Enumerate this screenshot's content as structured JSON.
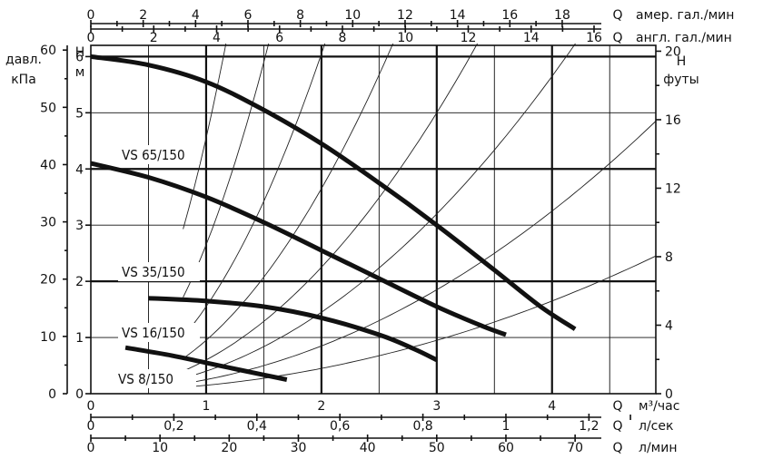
{
  "chart_data": {
    "type": "line",
    "axes": {
      "q_m3h": {
        "label": "Q",
        "unit": "м³/час",
        "ticks": [
          "0",
          "1",
          "2",
          "3",
          "4"
        ],
        "range": [
          0,
          4.9
        ]
      },
      "q_ls": {
        "label": "Q",
        "unit": "л/сек",
        "ticks": [
          "0",
          "0,2",
          "0,4",
          "0,6",
          "0,8",
          "1",
          "1,2"
        ],
        "values": [
          0,
          0.2,
          0.4,
          0.6,
          0.8,
          1.0,
          1.2
        ]
      },
      "q_lmin": {
        "label": "Q",
        "unit": "л/мин",
        "ticks": [
          "0",
          "10",
          "20",
          "30",
          "40",
          "50",
          "60",
          "70"
        ],
        "values": [
          0,
          10,
          20,
          30,
          40,
          50,
          60,
          70
        ]
      },
      "q_usgpm": {
        "label": "Q",
        "unit": "амер. гал./мин",
        "ticks": [
          "0",
          "2",
          "4",
          "6",
          "8",
          "10",
          "12",
          "14",
          "16",
          "18"
        ],
        "values": [
          0,
          2,
          4,
          6,
          8,
          10,
          12,
          14,
          16,
          18
        ]
      },
      "q_ukgpm": {
        "label": "Q",
        "unit": "англ. гал./мин",
        "ticks": [
          "0",
          "2",
          "4",
          "6",
          "8",
          "10",
          "12",
          "14",
          "16"
        ],
        "values": [
          0,
          2,
          4,
          6,
          8,
          10,
          12,
          14,
          16
        ]
      },
      "h_m": {
        "label": "H",
        "unit": "м",
        "ticks": [
          "0",
          "1",
          "2",
          "3",
          "4",
          "5",
          "6"
        ],
        "range": [
          0,
          6.2
        ]
      },
      "p_kpa": {
        "label": "давл.",
        "unit": "кПа",
        "ticks": [
          "0",
          "10",
          "20",
          "30",
          "40",
          "50",
          "60"
        ],
        "values": [
          0,
          10,
          20,
          30,
          40,
          50,
          60
        ]
      },
      "h_ft": {
        "label": "H",
        "unit": "футы",
        "ticks": [
          "0",
          "4",
          "8",
          "12",
          "16",
          "20"
        ],
        "values": [
          0,
          4,
          8,
          12,
          16,
          20
        ]
      }
    },
    "series": [
      {
        "name": "VS 65/150",
        "x": [
          0,
          0.5,
          1.0,
          1.5,
          2.0,
          2.5,
          3.0,
          3.5,
          3.9,
          4.2
        ],
        "y": [
          6.0,
          5.85,
          5.55,
          5.05,
          4.45,
          3.75,
          3.0,
          2.2,
          1.55,
          1.15
        ]
      },
      {
        "name": "VS 35/150",
        "x": [
          0,
          0.5,
          1.0,
          1.5,
          2.0,
          2.5,
          3.0,
          3.4,
          3.6
        ],
        "y": [
          4.1,
          3.85,
          3.5,
          3.05,
          2.55,
          2.05,
          1.55,
          1.2,
          1.05
        ]
      },
      {
        "name": "VS 16/150",
        "x": [
          0.5,
          1.0,
          1.5,
          2.0,
          2.5,
          2.8,
          3.0
        ],
        "y": [
          1.7,
          1.65,
          1.55,
          1.35,
          1.05,
          0.8,
          0.6
        ]
      },
      {
        "name": "VS 8/150",
        "x": [
          0.3,
          0.7,
          1.0,
          1.3,
          1.7
        ],
        "y": [
          0.82,
          0.68,
          0.55,
          0.42,
          0.25
        ]
      }
    ],
    "curve_labels": [
      {
        "series": "VS 65/150",
        "text": "VS 65/150"
      },
      {
        "series": "VS 35/150",
        "text": "VS 35/150"
      },
      {
        "series": "VS 16/150",
        "text": "VS 16/150"
      },
      {
        "series": "VS 8/150",
        "text": "VS 8/150"
      }
    ],
    "system_curves_k": [
      0.1,
      0.2,
      0.35,
      0.55,
      0.9,
      1.5,
      2.6,
      4.5
    ],
    "grid": true
  }
}
